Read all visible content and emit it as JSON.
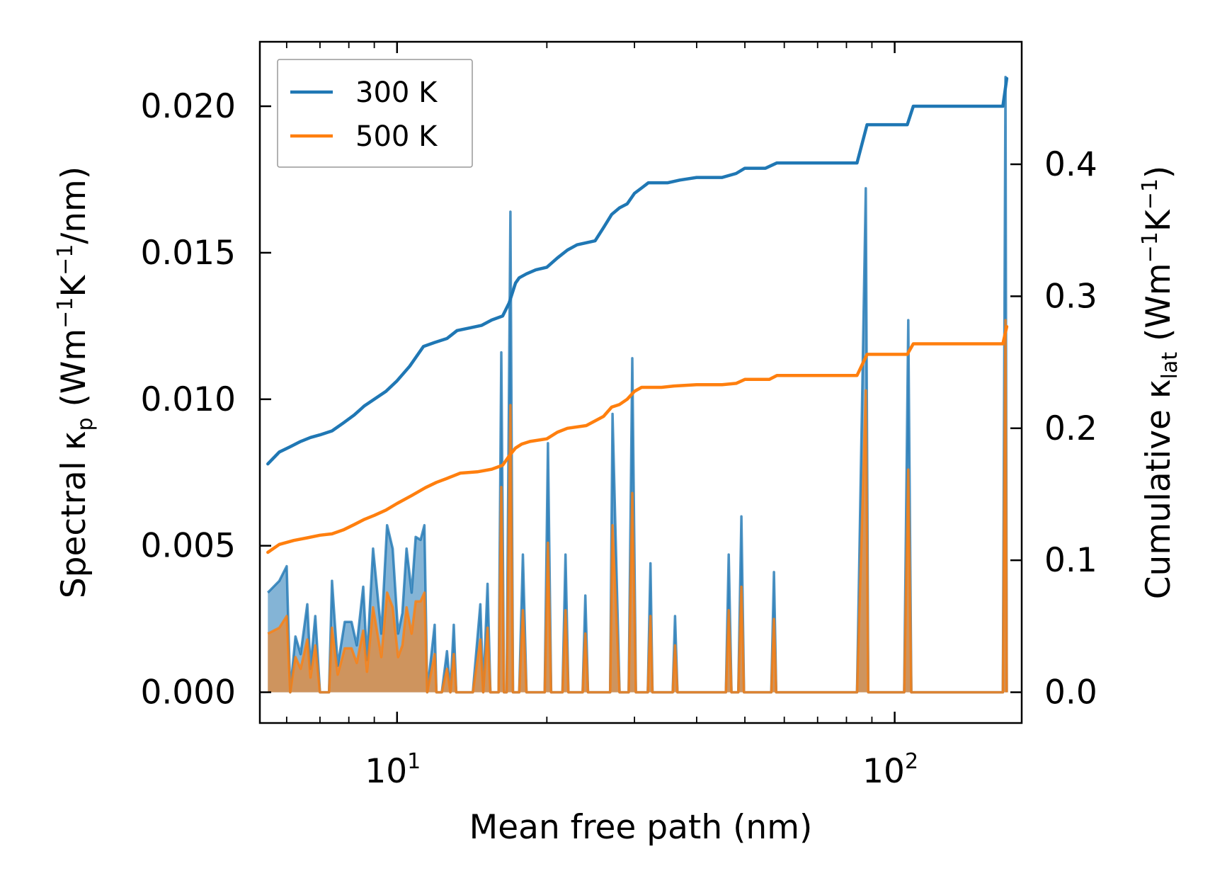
{
  "chart_data": {
    "type": "line",
    "xscale": "log",
    "xlim": [
      5.3,
      180
    ],
    "ylim_left": [
      -0.00105,
      0.0222
    ],
    "ylim_right": [
      -0.0233,
      0.4928
    ],
    "xlabel": "Mean free path (nm)",
    "ylabel_left": {
      "main": "Spectral κ",
      "sub": "p",
      "unit_pre": " (Wm",
      "sup1": "−1",
      "unit_mid": "K",
      "sup2": "−1",
      "unit_post": "/nm)"
    },
    "ylabel_right": {
      "main": "Cumulative κ",
      "sub": "lat",
      "unit_pre": " (Wm",
      "sup1": "−1",
      "unit_mid": "K",
      "sup2": "−1",
      "unit_post": ")"
    },
    "x_ticks": [
      {
        "value": 10,
        "base": "10",
        "exp": "1"
      },
      {
        "value": 100,
        "base": "10",
        "exp": "2"
      }
    ],
    "y_ticks_left": [
      {
        "value": 0.0,
        "label": "0.000"
      },
      {
        "value": 0.005,
        "label": "0.005"
      },
      {
        "value": 0.01,
        "label": "0.010"
      },
      {
        "value": 0.015,
        "label": "0.015"
      },
      {
        "value": 0.02,
        "label": "0.020"
      }
    ],
    "y_ticks_right": [
      {
        "value": 0.0,
        "label": "0.0"
      },
      {
        "value": 0.1,
        "label": "0.1"
      },
      {
        "value": 0.2,
        "label": "0.2"
      },
      {
        "value": 0.3,
        "label": "0.3"
      },
      {
        "value": 0.4,
        "label": "0.4"
      }
    ],
    "legend": [
      {
        "name": "300 K",
        "color": "#1f77b4"
      },
      {
        "name": "500 K",
        "color": "#ff7f0e"
      }
    ],
    "cumulative_series": [
      {
        "name": "300 K",
        "color": "#1f77b4",
        "points": [
          [
            5.5,
            0.173
          ],
          [
            5.8,
            0.182
          ],
          [
            6.1,
            0.186
          ],
          [
            6.4,
            0.19
          ],
          [
            6.7,
            0.193
          ],
          [
            7.0,
            0.195
          ],
          [
            7.4,
            0.198
          ],
          [
            7.8,
            0.204
          ],
          [
            8.2,
            0.21
          ],
          [
            8.6,
            0.217
          ],
          [
            9.0,
            0.222
          ],
          [
            9.5,
            0.228
          ],
          [
            10.0,
            0.236
          ],
          [
            10.6,
            0.247
          ],
          [
            11.3,
            0.262
          ],
          [
            11.9,
            0.265
          ],
          [
            12.6,
            0.268
          ],
          [
            13.2,
            0.274
          ],
          [
            14.0,
            0.276
          ],
          [
            14.8,
            0.278
          ],
          [
            15.5,
            0.282
          ],
          [
            16.3,
            0.285
          ],
          [
            16.8,
            0.295
          ],
          [
            17.3,
            0.31
          ],
          [
            17.6,
            0.314
          ],
          [
            18.2,
            0.317
          ],
          [
            19.0,
            0.32
          ],
          [
            20.0,
            0.322
          ],
          [
            21.0,
            0.329
          ],
          [
            22.0,
            0.335
          ],
          [
            23.0,
            0.339
          ],
          [
            25.0,
            0.342
          ],
          [
            26.0,
            0.352
          ],
          [
            27.0,
            0.362
          ],
          [
            28.0,
            0.367
          ],
          [
            29.0,
            0.37
          ],
          [
            30.0,
            0.378
          ],
          [
            31.0,
            0.382
          ],
          [
            32.0,
            0.386
          ],
          [
            35.0,
            0.386
          ],
          [
            37.0,
            0.388
          ],
          [
            40.0,
            0.39
          ],
          [
            45.0,
            0.39
          ],
          [
            48.0,
            0.393
          ],
          [
            50.0,
            0.397
          ],
          [
            55.0,
            0.397
          ],
          [
            58.0,
            0.401
          ],
          [
            70.0,
            0.401
          ],
          [
            84.0,
            0.401
          ],
          [
            88.0,
            0.43
          ],
          [
            106.0,
            0.43
          ],
          [
            109.0,
            0.444
          ],
          [
            165.0,
            0.444
          ],
          [
            168.0,
            0.465
          ]
        ]
      },
      {
        "name": "500 K",
        "color": "#ff7f0e",
        "points": [
          [
            5.5,
            0.106
          ],
          [
            5.8,
            0.112
          ],
          [
            6.2,
            0.115
          ],
          [
            6.6,
            0.117
          ],
          [
            7.0,
            0.119
          ],
          [
            7.4,
            0.12
          ],
          [
            7.8,
            0.123
          ],
          [
            8.2,
            0.127
          ],
          [
            8.6,
            0.131
          ],
          [
            9.0,
            0.134
          ],
          [
            9.5,
            0.138
          ],
          [
            10.0,
            0.143
          ],
          [
            10.7,
            0.149
          ],
          [
            11.4,
            0.155
          ],
          [
            12.0,
            0.159
          ],
          [
            12.6,
            0.162
          ],
          [
            13.4,
            0.166
          ],
          [
            14.5,
            0.167
          ],
          [
            15.5,
            0.169
          ],
          [
            16.3,
            0.172
          ],
          [
            16.8,
            0.179
          ],
          [
            17.3,
            0.185
          ],
          [
            17.8,
            0.188
          ],
          [
            18.5,
            0.19
          ],
          [
            20.0,
            0.192
          ],
          [
            21.0,
            0.197
          ],
          [
            22.0,
            0.2
          ],
          [
            24.0,
            0.202
          ],
          [
            26.0,
            0.209
          ],
          [
            27.0,
            0.216
          ],
          [
            28.0,
            0.218
          ],
          [
            29.0,
            0.222
          ],
          [
            30.0,
            0.228
          ],
          [
            31.0,
            0.231
          ],
          [
            34.0,
            0.231
          ],
          [
            36.0,
            0.232
          ],
          [
            40.0,
            0.233
          ],
          [
            45.0,
            0.233
          ],
          [
            48.0,
            0.234
          ],
          [
            50.0,
            0.237
          ],
          [
            56.0,
            0.237
          ],
          [
            58.0,
            0.24
          ],
          [
            70.0,
            0.24
          ],
          [
            84.0,
            0.24
          ],
          [
            88.0,
            0.256
          ],
          [
            106.0,
            0.256
          ],
          [
            109.0,
            0.264
          ],
          [
            165.0,
            0.264
          ],
          [
            168.0,
            0.277
          ]
        ]
      }
    ],
    "spectral_series": [
      {
        "name": "300 K",
        "color": "#1f77b4",
        "points": [
          [
            5.5,
            0.0034
          ],
          [
            5.8,
            0.0038
          ],
          [
            6.0,
            0.0043
          ],
          [
            6.1,
            0.0
          ],
          [
            6.25,
            0.0019
          ],
          [
            6.4,
            0.0013
          ],
          [
            6.6,
            0.003
          ],
          [
            6.7,
            0.0008
          ],
          [
            6.85,
            0.0026
          ],
          [
            7.0,
            0.0
          ],
          [
            7.3,
            0.0
          ],
          [
            7.4,
            0.0038
          ],
          [
            7.6,
            0.0009
          ],
          [
            7.85,
            0.0024
          ],
          [
            8.1,
            0.0024
          ],
          [
            8.3,
            0.0016
          ],
          [
            8.55,
            0.0036
          ],
          [
            8.7,
            0.0011
          ],
          [
            8.95,
            0.0049
          ],
          [
            9.3,
            0.002
          ],
          [
            9.55,
            0.0057
          ],
          [
            9.8,
            0.0049
          ],
          [
            10.05,
            0.002
          ],
          [
            10.25,
            0.0027
          ],
          [
            10.45,
            0.0049
          ],
          [
            10.7,
            0.0034
          ],
          [
            10.9,
            0.0053
          ],
          [
            11.15,
            0.0052
          ],
          [
            11.35,
            0.0057
          ],
          [
            11.5,
            0.0
          ],
          [
            11.9,
            0.0023
          ],
          [
            12.0,
            0.0
          ],
          [
            12.3,
            0.0
          ],
          [
            12.6,
            0.0014
          ],
          [
            12.8,
            0.0
          ],
          [
            13.0,
            0.0023
          ],
          [
            13.15,
            0.0
          ],
          [
            14.2,
            0.0
          ],
          [
            14.7,
            0.003
          ],
          [
            14.9,
            0.0
          ],
          [
            15.2,
            0.0037
          ],
          [
            15.4,
            0.0
          ],
          [
            16.0,
            0.0
          ],
          [
            16.2,
            0.0116
          ],
          [
            16.4,
            0.0
          ],
          [
            16.6,
            0.0
          ],
          [
            16.9,
            0.0164
          ],
          [
            17.1,
            0.0
          ],
          [
            17.6,
            0.0
          ],
          [
            17.9,
            0.0047
          ],
          [
            18.2,
            0.0
          ],
          [
            19.8,
            0.0
          ],
          [
            20.1,
            0.0085
          ],
          [
            20.4,
            0.0
          ],
          [
            21.5,
            0.0
          ],
          [
            21.8,
            0.0047
          ],
          [
            22.1,
            0.0
          ],
          [
            23.6,
            0.0
          ],
          [
            23.9,
            0.0033
          ],
          [
            24.2,
            0.0
          ],
          [
            26.8,
            0.0
          ],
          [
            27.1,
            0.0095
          ],
          [
            28.0,
            0.0
          ],
          [
            29.2,
            0.0
          ],
          [
            29.7,
            0.0114
          ],
          [
            30.2,
            0.0
          ],
          [
            31.9,
            0.0
          ],
          [
            32.3,
            0.0044
          ],
          [
            32.6,
            0.0
          ],
          [
            35.8,
            0.0
          ],
          [
            36.2,
            0.0026
          ],
          [
            36.6,
            0.0
          ],
          [
            45.8,
            0.0
          ],
          [
            46.4,
            0.0047
          ],
          [
            47.0,
            0.0
          ],
          [
            48.5,
            0.0
          ],
          [
            49.2,
            0.006
          ],
          [
            49.8,
            0.0
          ],
          [
            56.5,
            0.0
          ],
          [
            57.2,
            0.0041
          ],
          [
            57.8,
            0.0
          ],
          [
            84.0,
            0.0
          ],
          [
            87.5,
            0.0172
          ],
          [
            88.5,
            0.0
          ],
          [
            104.5,
            0.0
          ],
          [
            106.5,
            0.0127
          ],
          [
            108.0,
            0.0
          ],
          [
            165.0,
            0.0
          ],
          [
            167.0,
            0.021
          ],
          [
            168.0,
            0.0
          ]
        ]
      },
      {
        "name": "500 K",
        "color": "#ff7f0e",
        "points": [
          [
            5.5,
            0.002
          ],
          [
            5.8,
            0.0022
          ],
          [
            6.0,
            0.0026
          ],
          [
            6.1,
            0.0
          ],
          [
            6.25,
            0.0012
          ],
          [
            6.4,
            0.0008
          ],
          [
            6.6,
            0.0018
          ],
          [
            6.7,
            0.0005
          ],
          [
            6.85,
            0.0016
          ],
          [
            7.0,
            0.0
          ],
          [
            7.3,
            0.0
          ],
          [
            7.4,
            0.0022
          ],
          [
            7.6,
            0.0006
          ],
          [
            7.85,
            0.0015
          ],
          [
            8.1,
            0.0015
          ],
          [
            8.3,
            0.001
          ],
          [
            8.55,
            0.0021
          ],
          [
            8.7,
            0.0007
          ],
          [
            8.95,
            0.0029
          ],
          [
            9.3,
            0.0012
          ],
          [
            9.55,
            0.0034
          ],
          [
            9.8,
            0.0029
          ],
          [
            10.05,
            0.0012
          ],
          [
            10.25,
            0.0016
          ],
          [
            10.45,
            0.0029
          ],
          [
            10.7,
            0.002
          ],
          [
            10.9,
            0.0031
          ],
          [
            11.15,
            0.0031
          ],
          [
            11.35,
            0.0034
          ],
          [
            11.5,
            0.0
          ],
          [
            11.9,
            0.0013
          ],
          [
            12.0,
            0.0
          ],
          [
            12.3,
            0.0
          ],
          [
            12.6,
            0.0008
          ],
          [
            12.8,
            0.0
          ],
          [
            13.0,
            0.0013
          ],
          [
            13.15,
            0.0
          ],
          [
            14.2,
            0.0
          ],
          [
            14.7,
            0.0018
          ],
          [
            14.9,
            0.0
          ],
          [
            15.2,
            0.0022
          ],
          [
            15.4,
            0.0
          ],
          [
            16.0,
            0.0
          ],
          [
            16.2,
            0.007
          ],
          [
            16.4,
            0.0
          ],
          [
            16.6,
            0.0
          ],
          [
            16.9,
            0.0098
          ],
          [
            17.1,
            0.0
          ],
          [
            17.6,
            0.0
          ],
          [
            17.9,
            0.0028
          ],
          [
            18.2,
            0.0
          ],
          [
            19.8,
            0.0
          ],
          [
            20.1,
            0.0051
          ],
          [
            20.4,
            0.0
          ],
          [
            21.5,
            0.0
          ],
          [
            21.8,
            0.0028
          ],
          [
            22.1,
            0.0
          ],
          [
            23.6,
            0.0
          ],
          [
            23.9,
            0.002
          ],
          [
            24.2,
            0.0
          ],
          [
            26.8,
            0.0
          ],
          [
            27.1,
            0.0057
          ],
          [
            28.0,
            0.0
          ],
          [
            29.2,
            0.0
          ],
          [
            29.7,
            0.0068
          ],
          [
            30.2,
            0.0
          ],
          [
            31.9,
            0.0
          ],
          [
            32.3,
            0.0026
          ],
          [
            32.6,
            0.0
          ],
          [
            35.8,
            0.0
          ],
          [
            36.2,
            0.0016
          ],
          [
            36.6,
            0.0
          ],
          [
            45.8,
            0.0
          ],
          [
            46.4,
            0.0028
          ],
          [
            47.0,
            0.0
          ],
          [
            48.5,
            0.0
          ],
          [
            49.2,
            0.0036
          ],
          [
            49.8,
            0.0
          ],
          [
            56.5,
            0.0
          ],
          [
            57.2,
            0.0025
          ],
          [
            57.8,
            0.0
          ],
          [
            84.0,
            0.0
          ],
          [
            87.5,
            0.0103
          ],
          [
            88.5,
            0.0
          ],
          [
            104.5,
            0.0
          ],
          [
            106.5,
            0.0076
          ],
          [
            108.0,
            0.0
          ],
          [
            165.0,
            0.0
          ],
          [
            167.0,
            0.0127
          ],
          [
            168.0,
            0.0
          ]
        ]
      }
    ]
  }
}
